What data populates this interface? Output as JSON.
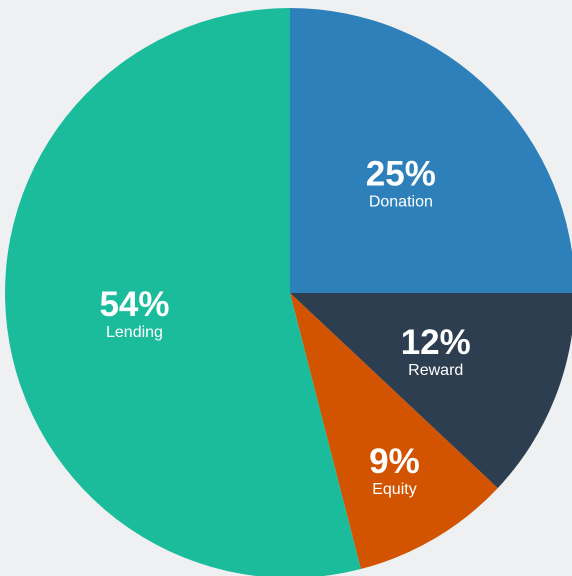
{
  "chart_data": {
    "type": "pie",
    "categories": [
      "Donation",
      "Reward",
      "Equity",
      "Lending"
    ],
    "values": [
      25,
      12,
      9,
      54
    ],
    "value_labels": [
      "25%",
      "12%",
      "9%",
      "54%"
    ],
    "colors": [
      "#2e80bb",
      "#2c3e50",
      "#d35400",
      "#1abc9c"
    ]
  }
}
